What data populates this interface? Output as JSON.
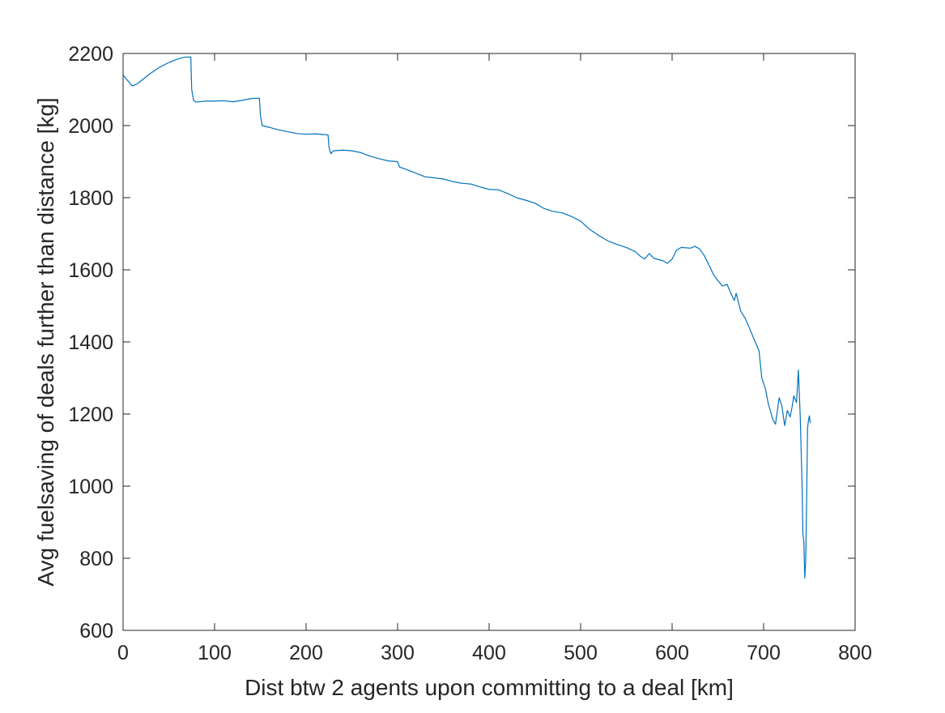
{
  "chart_data": {
    "type": "line",
    "title": "",
    "xlabel": "Dist btw 2 agents upon committing to a deal [km]",
    "ylabel": "Avg fuelsaving of deals further than distance [kg]",
    "xlim": [
      0,
      800
    ],
    "ylim": [
      600,
      2200
    ],
    "xticks": [
      0,
      100,
      200,
      300,
      400,
      500,
      600,
      700,
      800
    ],
    "yticks": [
      600,
      800,
      1000,
      1200,
      1400,
      1600,
      1800,
      2000,
      2200
    ],
    "grid": false,
    "box": true,
    "series": [
      {
        "color": "#0072BD",
        "points": [
          [
            0,
            2140
          ],
          [
            5,
            2125
          ],
          [
            10,
            2110
          ],
          [
            15,
            2115
          ],
          [
            20,
            2125
          ],
          [
            30,
            2145
          ],
          [
            40,
            2162
          ],
          [
            50,
            2175
          ],
          [
            60,
            2185
          ],
          [
            68,
            2190
          ],
          [
            74,
            2190
          ],
          [
            75,
            2100
          ],
          [
            77,
            2070
          ],
          [
            80,
            2065
          ],
          [
            90,
            2068
          ],
          [
            100,
            2068
          ],
          [
            110,
            2069
          ],
          [
            120,
            2066
          ],
          [
            130,
            2070
          ],
          [
            140,
            2075
          ],
          [
            149,
            2076
          ],
          [
            150,
            2030
          ],
          [
            152,
            2000
          ],
          [
            160,
            1995
          ],
          [
            170,
            1988
          ],
          [
            180,
            1983
          ],
          [
            190,
            1978
          ],
          [
            200,
            1976
          ],
          [
            210,
            1977
          ],
          [
            220,
            1975
          ],
          [
            224,
            1974
          ],
          [
            225,
            1940
          ],
          [
            227,
            1922
          ],
          [
            230,
            1930
          ],
          [
            240,
            1932
          ],
          [
            250,
            1930
          ],
          [
            260,
            1925
          ],
          [
            270,
            1915
          ],
          [
            280,
            1908
          ],
          [
            290,
            1902
          ],
          [
            300,
            1900
          ],
          [
            302,
            1885
          ],
          [
            310,
            1878
          ],
          [
            320,
            1868
          ],
          [
            330,
            1858
          ],
          [
            340,
            1855
          ],
          [
            350,
            1852
          ],
          [
            360,
            1845
          ],
          [
            370,
            1840
          ],
          [
            380,
            1838
          ],
          [
            390,
            1830
          ],
          [
            400,
            1823
          ],
          [
            410,
            1822
          ],
          [
            420,
            1812
          ],
          [
            430,
            1800
          ],
          [
            440,
            1793
          ],
          [
            450,
            1785
          ],
          [
            460,
            1770
          ],
          [
            470,
            1762
          ],
          [
            480,
            1758
          ],
          [
            490,
            1748
          ],
          [
            500,
            1735
          ],
          [
            510,
            1712
          ],
          [
            520,
            1695
          ],
          [
            530,
            1680
          ],
          [
            540,
            1670
          ],
          [
            550,
            1662
          ],
          [
            560,
            1650
          ],
          [
            565,
            1638
          ],
          [
            570,
            1630
          ],
          [
            575,
            1645
          ],
          [
            580,
            1632
          ],
          [
            590,
            1625
          ],
          [
            595,
            1618
          ],
          [
            600,
            1630
          ],
          [
            605,
            1655
          ],
          [
            610,
            1662
          ],
          [
            620,
            1660
          ],
          [
            625,
            1665
          ],
          [
            630,
            1658
          ],
          [
            635,
            1640
          ],
          [
            640,
            1615
          ],
          [
            645,
            1588
          ],
          [
            650,
            1570
          ],
          [
            655,
            1555
          ],
          [
            660,
            1560
          ],
          [
            665,
            1530
          ],
          [
            668,
            1515
          ],
          [
            670,
            1535
          ],
          [
            675,
            1485
          ],
          [
            680,
            1465
          ],
          [
            685,
            1435
          ],
          [
            690,
            1405
          ],
          [
            695,
            1375
          ],
          [
            698,
            1300
          ],
          [
            702,
            1270
          ],
          [
            705,
            1230
          ],
          [
            710,
            1185
          ],
          [
            713,
            1172
          ],
          [
            717,
            1245
          ],
          [
            720,
            1222
          ],
          [
            723,
            1168
          ],
          [
            726,
            1210
          ],
          [
            729,
            1192
          ],
          [
            731,
            1218
          ],
          [
            733,
            1250
          ],
          [
            736,
            1232
          ],
          [
            738,
            1322
          ],
          [
            740,
            1195
          ],
          [
            742,
            1005
          ],
          [
            743,
            865
          ],
          [
            744,
            845
          ],
          [
            745,
            745
          ],
          [
            746,
            790
          ],
          [
            747,
            955
          ],
          [
            748,
            1160
          ],
          [
            749,
            1182
          ],
          [
            750,
            1195
          ],
          [
            751,
            1175
          ]
        ]
      }
    ]
  }
}
